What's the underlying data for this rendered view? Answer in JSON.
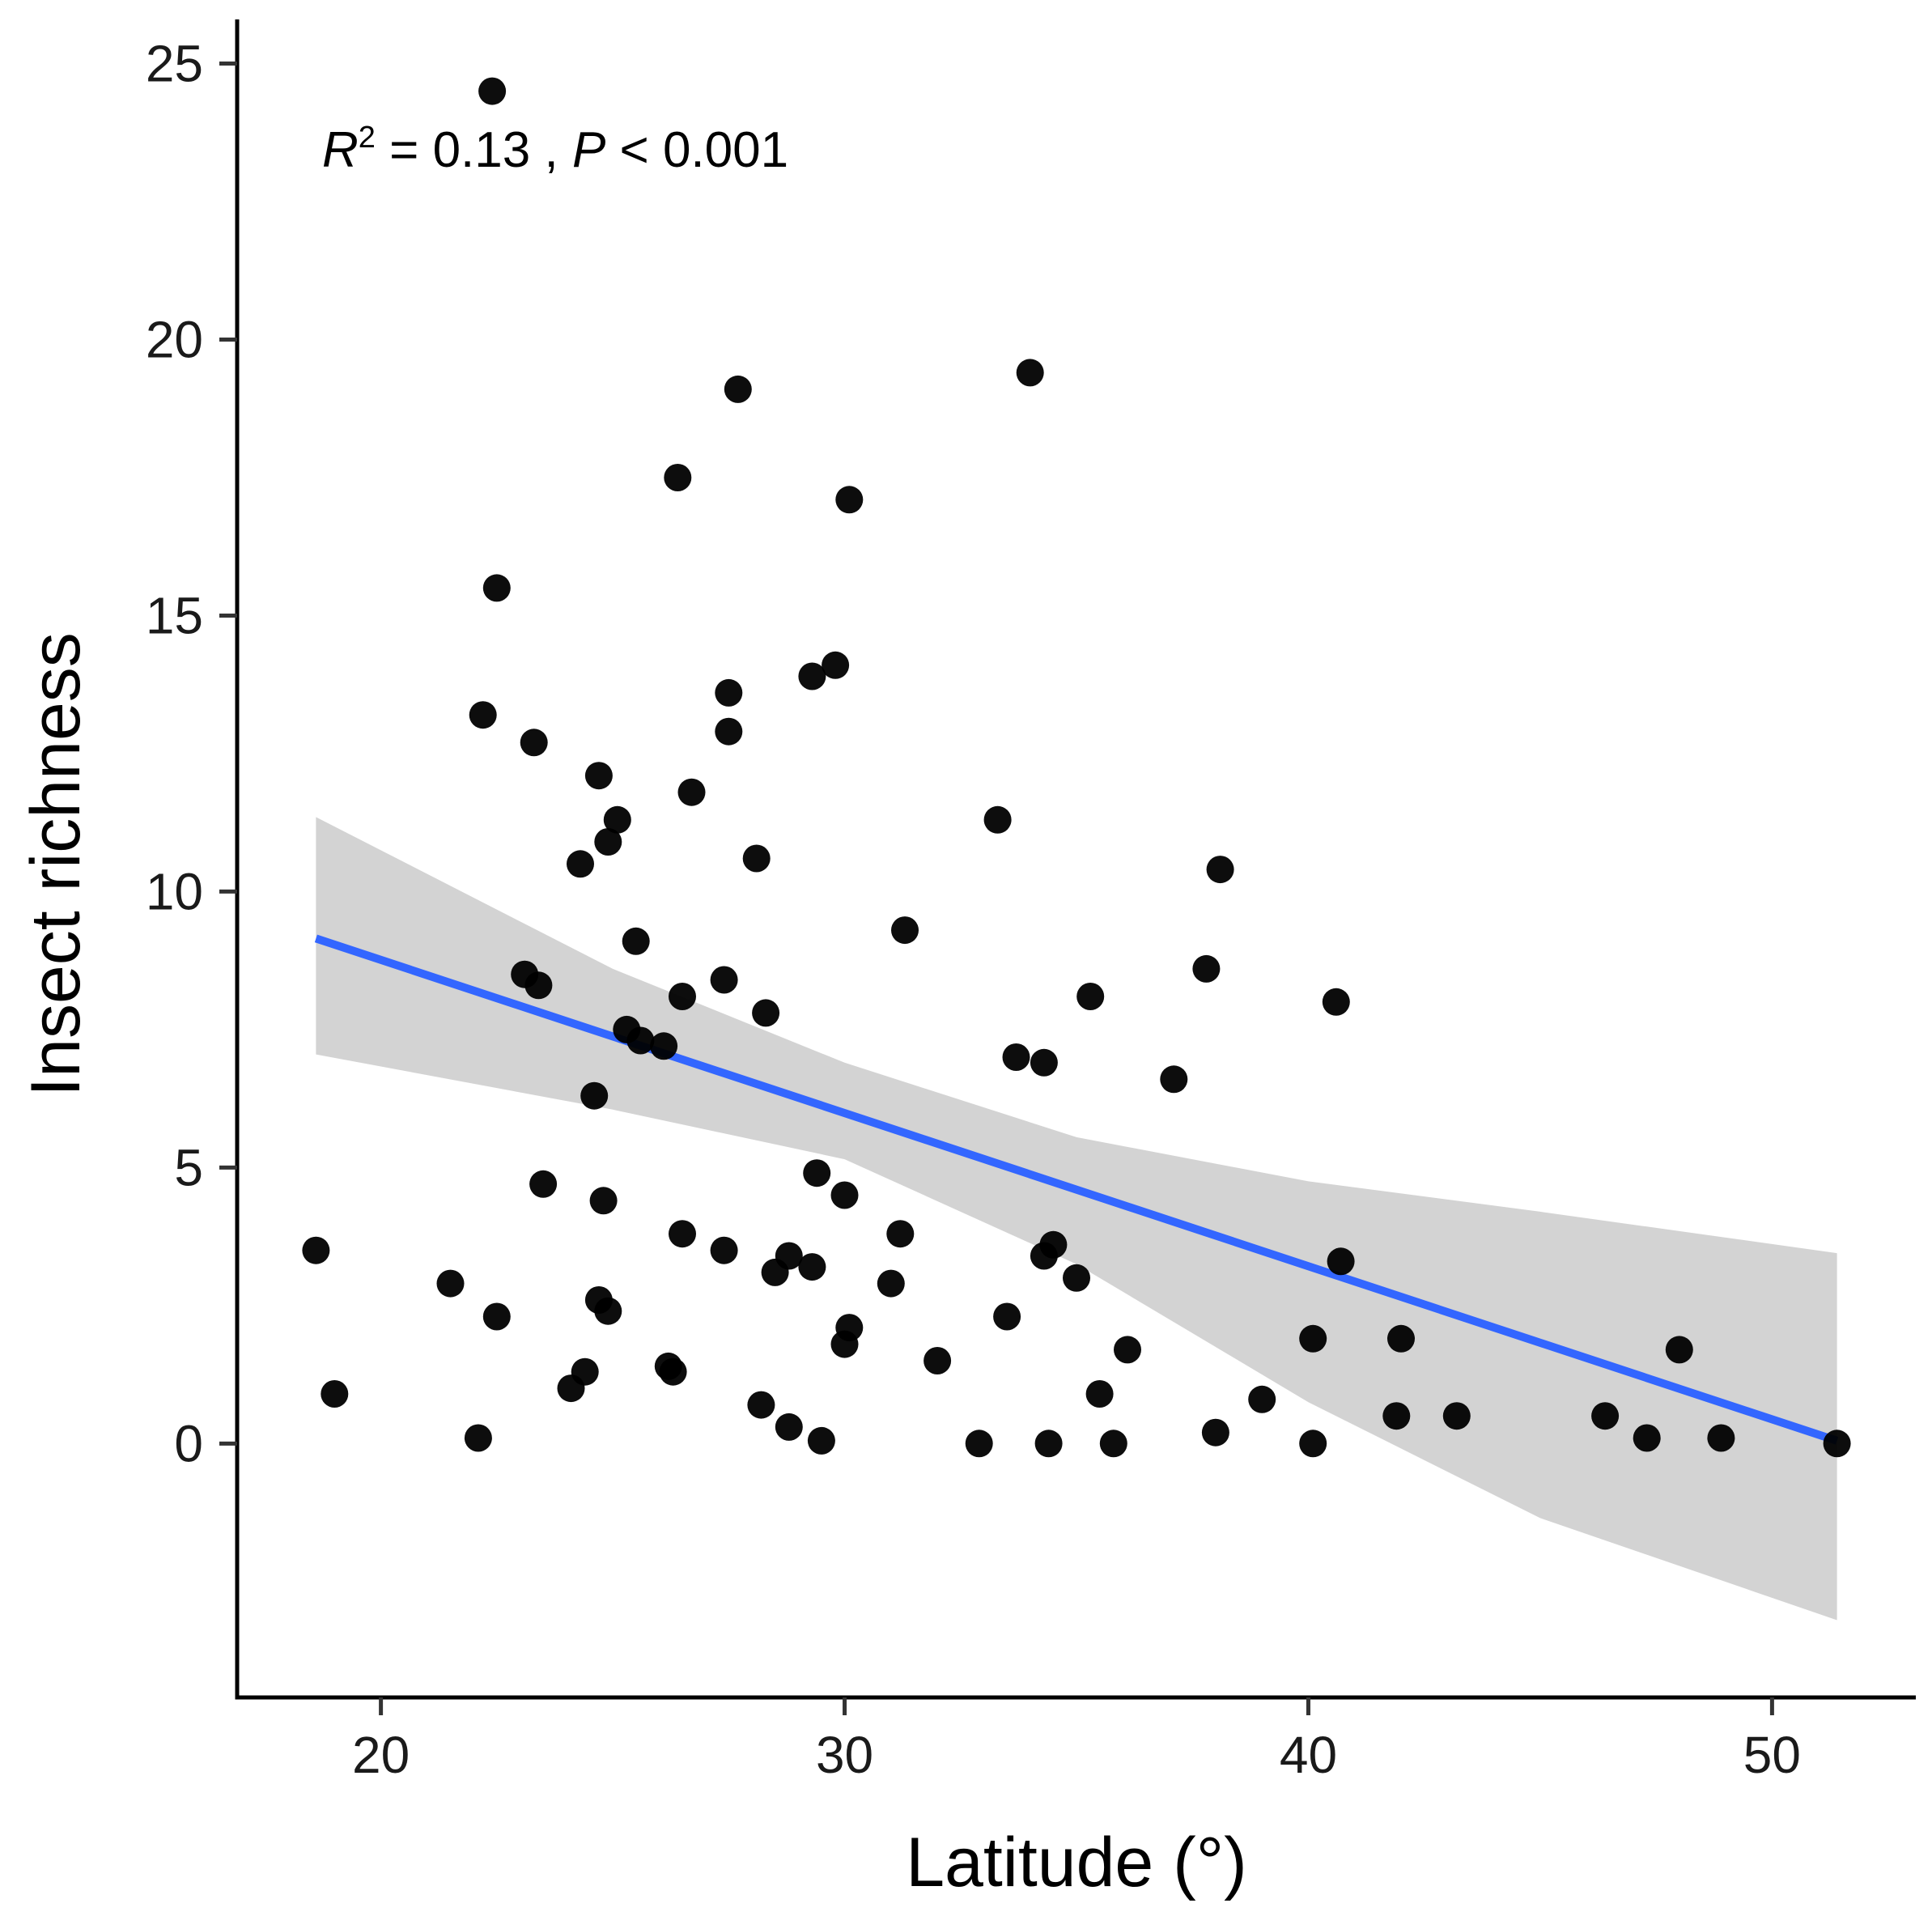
{
  "chart_data": {
    "type": "scatter",
    "title": "",
    "xlabel": "Latitude (°)",
    "ylabel": "Insect richness",
    "xlim": [
      16.9,
      53.1
    ],
    "ylim": [
      -4.6,
      25.8
    ],
    "xticks": [
      20,
      30,
      40,
      50
    ],
    "yticks": [
      0,
      5,
      10,
      15,
      20,
      25
    ],
    "grid": false,
    "annotation": {
      "r_symbol": "R",
      "r_exponent": "2",
      "r_value": " = 0.13 , ",
      "p_symbol": "P",
      "p_value": " < 0.001"
    },
    "regression": {
      "x": [
        18.6,
        51.4
      ],
      "y": [
        9.15,
        0.05
      ],
      "ci_upper": [
        [
          18.6,
          11.35
        ],
        [
          25,
          8.6
        ],
        [
          30,
          6.9
        ],
        [
          35,
          5.55
        ],
        [
          40,
          4.75
        ],
        [
          45,
          4.2
        ],
        [
          51.4,
          3.45
        ]
      ],
      "ci_lower": [
        [
          18.6,
          7.05
        ],
        [
          25,
          6.05
        ],
        [
          30,
          5.15
        ],
        [
          35,
          3.25
        ],
        [
          40,
          0.75
        ],
        [
          45,
          -1.35
        ],
        [
          51.4,
          -3.2
        ]
      ],
      "line_color": "#3366ff",
      "band_color": "#d3d3d3"
    },
    "point_color": "#000000",
    "points": [
      {
        "x": 22.4,
        "y": 24.5
      },
      {
        "x": 34.0,
        "y": 19.4
      },
      {
        "x": 27.7,
        "y": 19.1
      },
      {
        "x": 26.4,
        "y": 17.5
      },
      {
        "x": 30.1,
        "y": 17.1
      },
      {
        "x": 22.5,
        "y": 15.5
      },
      {
        "x": 29.8,
        "y": 14.1
      },
      {
        "x": 29.3,
        "y": 13.9
      },
      {
        "x": 27.5,
        "y": 13.6
      },
      {
        "x": 22.2,
        "y": 13.2
      },
      {
        "x": 27.5,
        "y": 12.9
      },
      {
        "x": 23.3,
        "y": 12.7
      },
      {
        "x": 24.7,
        "y": 12.1
      },
      {
        "x": 26.7,
        "y": 11.8
      },
      {
        "x": 25.1,
        "y": 11.3
      },
      {
        "x": 33.3,
        "y": 11.3
      },
      {
        "x": 24.9,
        "y": 10.9
      },
      {
        "x": 28.1,
        "y": 10.6
      },
      {
        "x": 24.3,
        "y": 10.5
      },
      {
        "x": 38.1,
        "y": 10.4
      },
      {
        "x": 31.3,
        "y": 9.3
      },
      {
        "x": 25.5,
        "y": 9.1
      },
      {
        "x": 37.8,
        "y": 8.6
      },
      {
        "x": 23.1,
        "y": 8.5
      },
      {
        "x": 27.4,
        "y": 8.4
      },
      {
        "x": 23.4,
        "y": 8.3
      },
      {
        "x": 26.5,
        "y": 8.1
      },
      {
        "x": 35.3,
        "y": 8.1
      },
      {
        "x": 40.6,
        "y": 8.0
      },
      {
        "x": 28.3,
        "y": 7.8
      },
      {
        "x": 25.3,
        "y": 7.5
      },
      {
        "x": 25.6,
        "y": 7.3
      },
      {
        "x": 26.1,
        "y": 7.2
      },
      {
        "x": 33.7,
        "y": 7.0
      },
      {
        "x": 34.3,
        "y": 6.9
      },
      {
        "x": 37.1,
        "y": 6.6
      },
      {
        "x": 24.6,
        "y": 6.3
      },
      {
        "x": 29.4,
        "y": 4.9
      },
      {
        "x": 23.5,
        "y": 4.7
      },
      {
        "x": 30.0,
        "y": 4.5
      },
      {
        "x": 24.8,
        "y": 4.4
      },
      {
        "x": 26.5,
        "y": 3.8
      },
      {
        "x": 31.2,
        "y": 3.8
      },
      {
        "x": 34.5,
        "y": 3.6
      },
      {
        "x": 18.6,
        "y": 3.5
      },
      {
        "x": 27.4,
        "y": 3.5
      },
      {
        "x": 34.3,
        "y": 3.4
      },
      {
        "x": 28.8,
        "y": 3.4
      },
      {
        "x": 40.7,
        "y": 3.3
      },
      {
        "x": 28.5,
        "y": 3.1
      },
      {
        "x": 29.3,
        "y": 3.2
      },
      {
        "x": 35.0,
        "y": 3.0
      },
      {
        "x": 21.5,
        "y": 2.9
      },
      {
        "x": 31.0,
        "y": 2.9
      },
      {
        "x": 24.7,
        "y": 2.6
      },
      {
        "x": 24.9,
        "y": 2.4
      },
      {
        "x": 22.5,
        "y": 2.3
      },
      {
        "x": 33.5,
        "y": 2.3
      },
      {
        "x": 30.1,
        "y": 2.1
      },
      {
        "x": 30.0,
        "y": 1.8
      },
      {
        "x": 40.1,
        "y": 1.9
      },
      {
        "x": 42.0,
        "y": 1.9
      },
      {
        "x": 36.1,
        "y": 1.7
      },
      {
        "x": 48.0,
        "y": 1.7
      },
      {
        "x": 32.0,
        "y": 1.5
      },
      {
        "x": 26.2,
        "y": 1.4
      },
      {
        "x": 26.3,
        "y": 1.3
      },
      {
        "x": 24.4,
        "y": 1.3
      },
      {
        "x": 24.1,
        "y": 1.0
      },
      {
        "x": 19.0,
        "y": 0.9
      },
      {
        "x": 35.5,
        "y": 0.9
      },
      {
        "x": 39.0,
        "y": 0.8
      },
      {
        "x": 28.2,
        "y": 0.7
      },
      {
        "x": 41.9,
        "y": 0.5
      },
      {
        "x": 43.2,
        "y": 0.5
      },
      {
        "x": 46.4,
        "y": 0.5
      },
      {
        "x": 28.8,
        "y": 0.3
      },
      {
        "x": 38.0,
        "y": 0.2
      },
      {
        "x": 22.1,
        "y": 0.1
      },
      {
        "x": 29.5,
        "y": 0.05
      },
      {
        "x": 47.3,
        "y": 0.1
      },
      {
        "x": 48.9,
        "y": 0.1
      },
      {
        "x": 32.9,
        "y": 0.0
      },
      {
        "x": 34.4,
        "y": 0.0
      },
      {
        "x": 35.8,
        "y": 0.0
      },
      {
        "x": 40.1,
        "y": 0.0
      },
      {
        "x": 51.4,
        "y": 0.0
      }
    ]
  }
}
